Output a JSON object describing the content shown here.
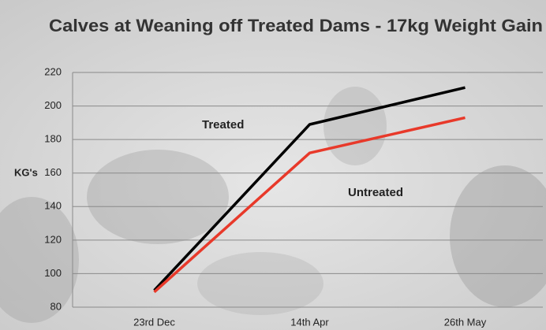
{
  "chart_data": {
    "type": "line",
    "title": "Calves at Weaning off Treated Dams - 17kg Weight Gain",
    "y_label": "KG's",
    "categories": [
      "23rd Dec",
      "14th Apr",
      "26th May"
    ],
    "series": [
      {
        "name": "Treated",
        "color": "#000000",
        "values": [
          90,
          189,
          211
        ]
      },
      {
        "name": "Untreated",
        "color": "#e8392a",
        "values": [
          89,
          172,
          193
        ]
      }
    ],
    "ylim": [
      80,
      220
    ],
    "yticks": [
      80,
      100,
      120,
      140,
      160,
      180,
      200,
      220
    ],
    "grid": true
  }
}
